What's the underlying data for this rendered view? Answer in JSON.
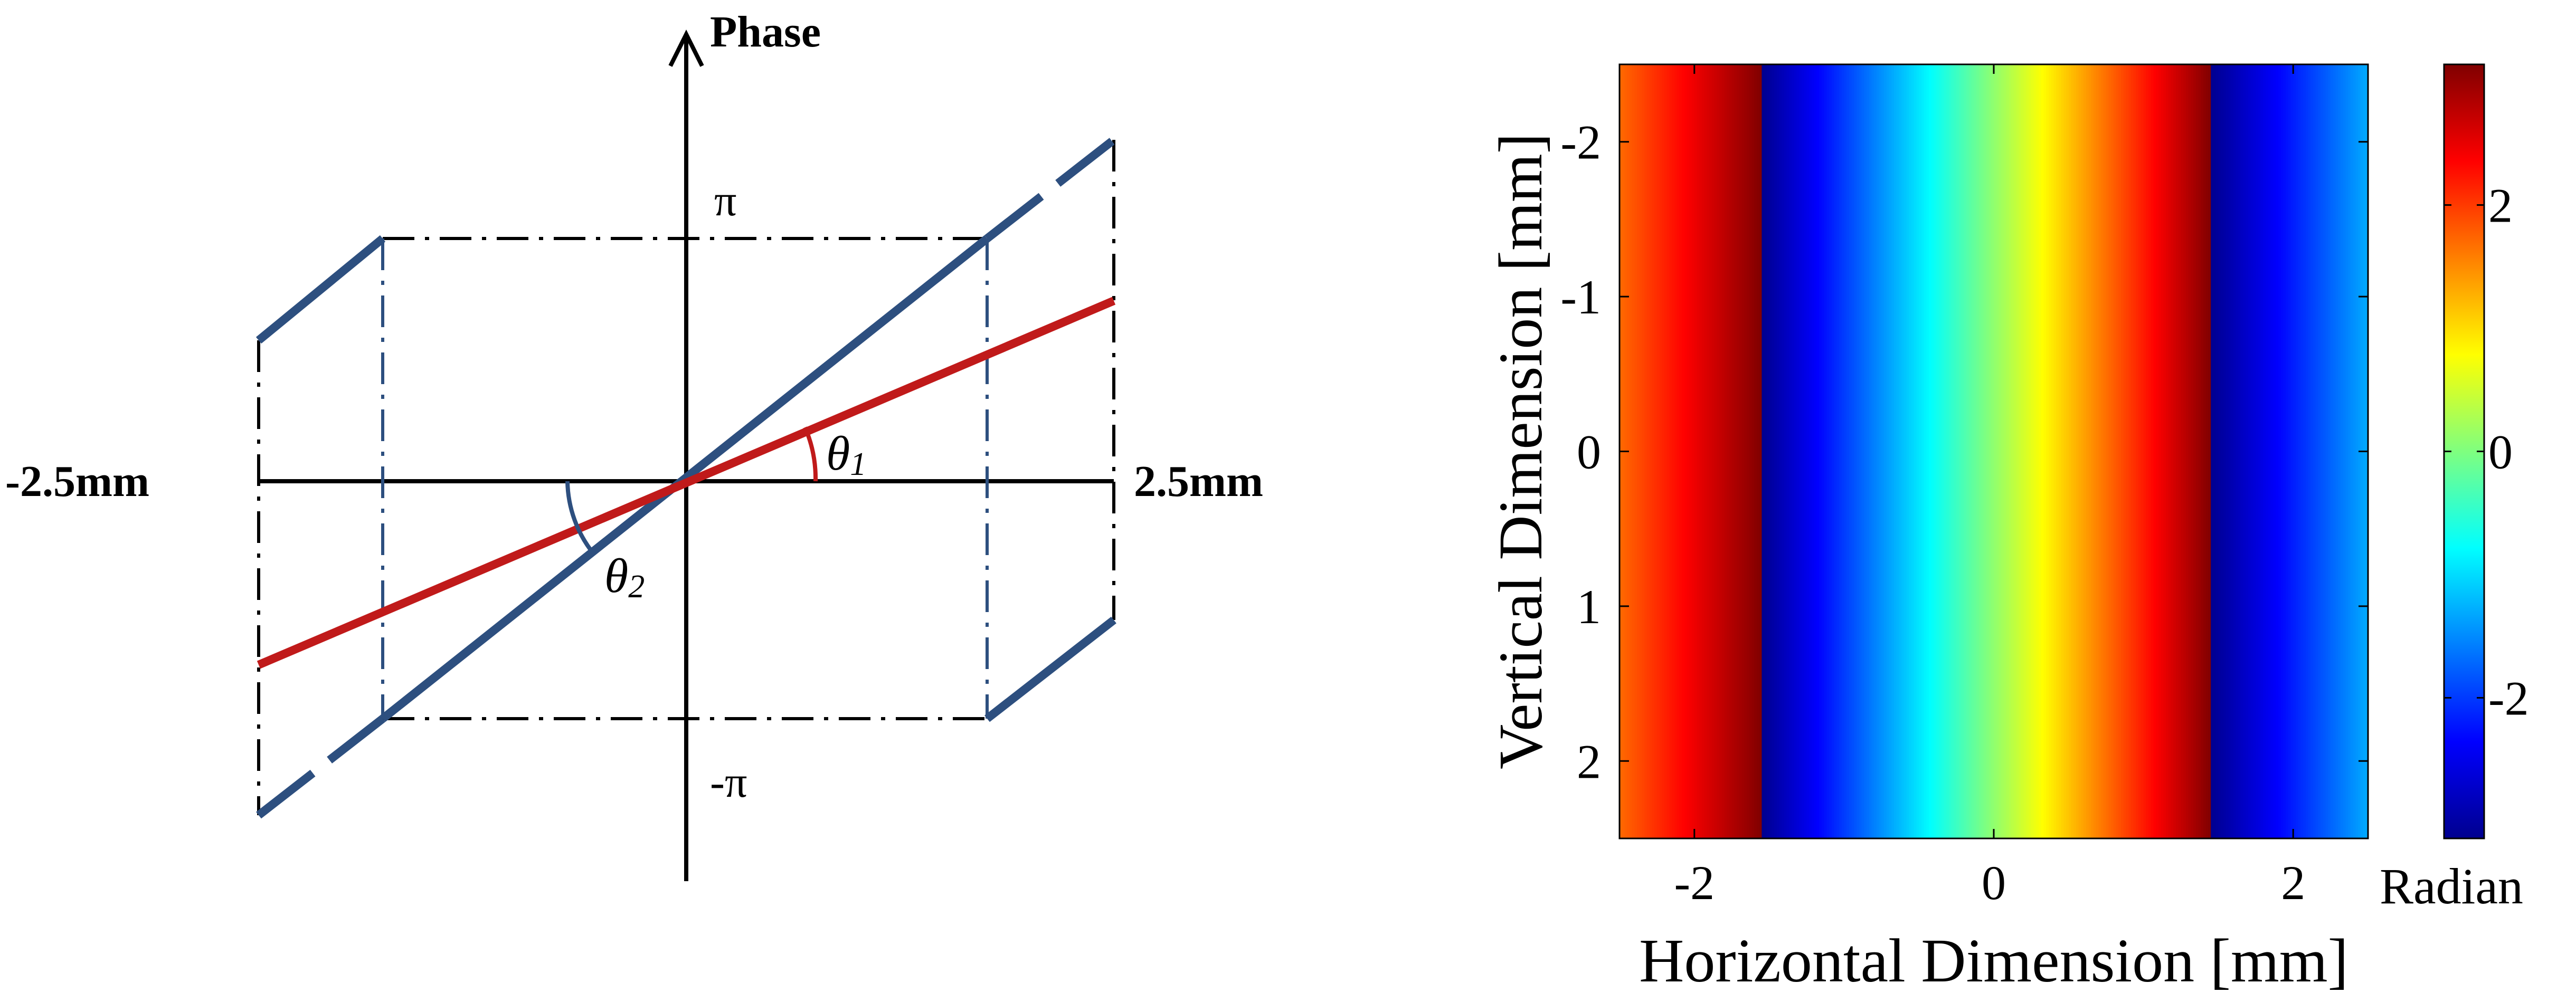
{
  "left_diagram": {
    "y_axis_label": "Phase",
    "x_left_label": "-2.5mm",
    "x_right_label": "2.5mm",
    "pi_label": "π",
    "neg_pi_label": "-π",
    "theta1": {
      "symbol": "θ",
      "sub": "1"
    },
    "theta2": {
      "symbol": "θ",
      "sub": "2"
    },
    "colors": {
      "blue": "#2d4f7f",
      "red": "#c01a1a",
      "black": "#000000"
    }
  },
  "chart_data": {
    "type": "heatmap",
    "xlabel": "Horizontal Dimension [mm]",
    "ylabel": "Vertical Dimension [mm]",
    "xlim": [
      -2.5,
      2.5
    ],
    "ylim": [
      -2.5,
      2.5
    ],
    "y_reversed": true,
    "x_ticks": [
      -2,
      0,
      2
    ],
    "x_tick_labels": [
      "-2",
      "0",
      "2"
    ],
    "y_ticks": [
      -2,
      -1,
      0,
      1,
      2
    ],
    "y_tick_labels": [
      "-2",
      "-1",
      "0",
      "1",
      "2"
    ],
    "colorbar": {
      "label": "Radian",
      "range": [
        -3.1416,
        3.1416
      ],
      "ticks": [
        -2,
        0,
        2
      ],
      "tick_labels": [
        "-2",
        "0",
        "2"
      ],
      "colormap": "jet"
    },
    "phase_profile": {
      "description_of_values": "phase varies only along horizontal dimension; wrapped to [-pi, pi]",
      "x_mm": [
        -2.5,
        -1.55,
        -1.549,
        1.45,
        1.451,
        2.5
      ],
      "phase_rad": [
        1.7,
        3.14,
        -3.14,
        3.14,
        -3.14,
        -1.3
      ]
    }
  }
}
